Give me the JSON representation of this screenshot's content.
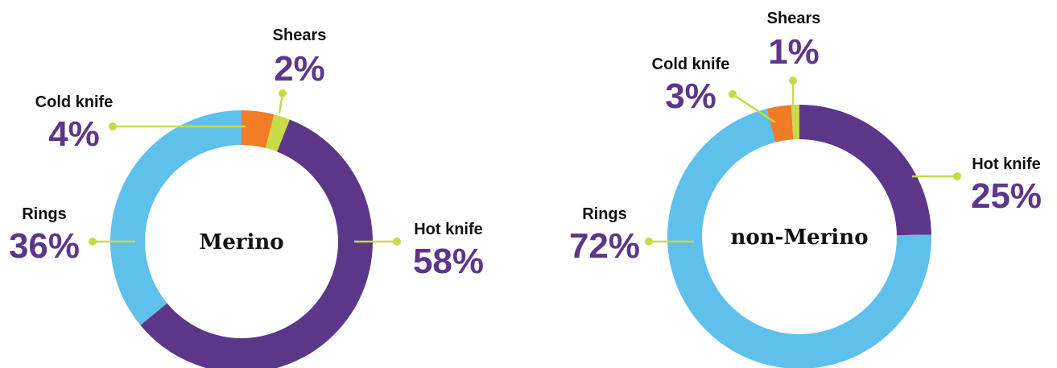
{
  "chart_data": [
    {
      "type": "pie",
      "title": "Merino",
      "categories": [
        "Shears",
        "Cold knife",
        "Rings",
        "Hot knife"
      ],
      "values": [
        2,
        4,
        36,
        58
      ],
      "labels": [
        "2%",
        "4%",
        "36%",
        "58%"
      ]
    },
    {
      "type": "pie",
      "title": "non-Merino",
      "categories": [
        "Shears",
        "Cold knife",
        "Rings",
        "Hot knife"
      ],
      "values": [
        1,
        3,
        72,
        25
      ],
      "labels": [
        "1%",
        "3%",
        "72%",
        "25%"
      ]
    }
  ],
  "colors": {
    "Hot knife": "#5c3789",
    "Rings": "#5fc0eb",
    "Cold knife": "#f27b27",
    "Shears": "#c8da47",
    "leader": "#c8da47",
    "percent": "#5c3789",
    "text": "#111111"
  }
}
